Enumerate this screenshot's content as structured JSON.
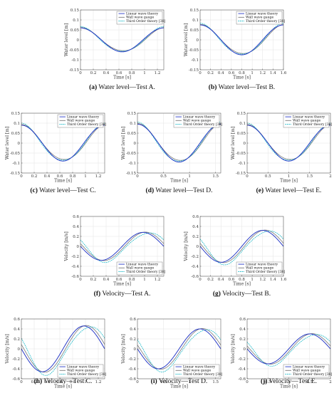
{
  "colors": {
    "linear": "#2a3cc8",
    "wall": "#7a7a7a",
    "third": "#19b9c8"
  },
  "legend_entries": [
    "Linear wave theory",
    "Wall wave gauge",
    "Third Order theory [38]"
  ],
  "chart_data": [
    {
      "type": "line",
      "tag": "(a)",
      "caption": "Water level—Test A.",
      "xlabel": "Time [s]",
      "ylabel": "Water level [m]",
      "xlim": [
        0,
        1.3
      ],
      "ylim": [
        -0.15,
        0.15
      ],
      "xticks": [
        0,
        0.2,
        0.4,
        0.6,
        0.8,
        1,
        1.2
      ],
      "yticks": [
        -0.15,
        -0.1,
        -0.05,
        0,
        0.05,
        0.1,
        0.15
      ],
      "period": 1.3,
      "amplitude": 0.06,
      "shape": "cos",
      "grid": true,
      "legend": "top-right"
    },
    {
      "type": "line",
      "tag": "(b)",
      "caption": "Water level—Test B.",
      "xlabel": "Time [s]",
      "ylabel": "Water level [m]",
      "xlim": [
        0,
        1.6
      ],
      "ylim": [
        -0.15,
        0.15
      ],
      "xticks": [
        0,
        0.2,
        0.4,
        0.6,
        0.8,
        1,
        1.2,
        1.4,
        1.6
      ],
      "yticks": [
        -0.15,
        -0.1,
        -0.05,
        0,
        0.05,
        0.1,
        0.15
      ],
      "period": 1.6,
      "amplitude": 0.075,
      "shape": "cos",
      "grid": true,
      "legend": "top-right"
    },
    {
      "type": "line",
      "tag": "(c)",
      "caption": "Water level—Test C.",
      "xlabel": "Time [s]",
      "ylabel": "Water level [m]",
      "xlim": [
        0,
        1.3
      ],
      "ylim": [
        -0.15,
        0.15
      ],
      "xticks": [
        0,
        0.2,
        0.4,
        0.6,
        0.8,
        1,
        1.2
      ],
      "yticks": [
        -0.15,
        -0.1,
        -0.05,
        0,
        0.05,
        0.1,
        0.15
      ],
      "period": 1.3,
      "amplitude": 0.09,
      "shape": "cos",
      "grid": true,
      "legend": "top-right"
    },
    {
      "type": "line",
      "tag": "(d)",
      "caption": "Water level—Test D.",
      "xlabel": "Time [s]",
      "ylabel": "Water level [m]",
      "xlim": [
        0,
        1.6
      ],
      "ylim": [
        -0.15,
        0.15
      ],
      "xticks": [
        0,
        0.5,
        1,
        1.5
      ],
      "yticks": [
        -0.15,
        -0.1,
        -0.05,
        0,
        0.05,
        0.1,
        0.15
      ],
      "period": 1.6,
      "amplitude": 0.095,
      "shape": "cos",
      "grid": true,
      "legend": "top-right"
    },
    {
      "type": "line",
      "tag": "(e)",
      "caption": "Water level—Test E.",
      "xlabel": "Time [s]",
      "ylabel": "Water level [m]",
      "xlim": [
        0,
        2
      ],
      "ylim": [
        -0.15,
        0.15
      ],
      "xticks": [
        0,
        0.5,
        1,
        1.5,
        2
      ],
      "yticks": [
        -0.15,
        -0.1,
        -0.05,
        0,
        0.05,
        0.1,
        0.15
      ],
      "period": 2,
      "amplitude": 0.09,
      "shape": "cos",
      "grid": true,
      "legend": "top-right"
    },
    {
      "type": "line",
      "tag": "(f)",
      "caption": "Velocity—Test A.",
      "xlabel": "Time [s]",
      "ylabel": "Velocity [m/s]",
      "xlim": [
        0,
        1.3
      ],
      "ylim": [
        -0.6,
        0.6
      ],
      "xticks": [
        0,
        0.2,
        0.4,
        0.6,
        0.8,
        1,
        1.2
      ],
      "yticks": [
        -0.6,
        -0.4,
        -0.2,
        0,
        0.2,
        0.4,
        0.6
      ],
      "period": 1.3,
      "amplitude": 0.28,
      "shape": "negsin",
      "grid": true,
      "legend": "bottom-right"
    },
    {
      "type": "line",
      "tag": "(g)",
      "caption": "Velocity—Test B.",
      "xlabel": "Time [s]",
      "ylabel": "Velocity [m/s]",
      "xlim": [
        0,
        1.6
      ],
      "ylim": [
        -0.6,
        0.6
      ],
      "xticks": [
        0,
        0.2,
        0.4,
        0.6,
        0.8,
        1,
        1.2,
        1.4,
        1.6
      ],
      "yticks": [
        -0.6,
        -0.4,
        -0.2,
        0,
        0.2,
        0.4,
        0.6
      ],
      "period": 1.6,
      "amplitude": 0.32,
      "shape": "negsin",
      "grid": true,
      "legend": "bottom-right"
    },
    {
      "type": "line",
      "tag": "(h)",
      "caption": "Velocity—Test C.",
      "xlabel": "Time [s]",
      "ylabel": "Velocity [m/s]",
      "xlim": [
        0,
        1.3
      ],
      "ylim": [
        -0.6,
        0.6
      ],
      "xticks": [
        0,
        0.2,
        0.4,
        0.6,
        0.8,
        1,
        1.2
      ],
      "yticks": [
        -0.6,
        -0.4,
        -0.2,
        0,
        0.2,
        0.4,
        0.6
      ],
      "period": 1.3,
      "amplitude": 0.46,
      "shape": "negsin",
      "grid": true,
      "legend": "bottom-right"
    },
    {
      "type": "line",
      "tag": "(i)",
      "caption": "Velocity—Test D.",
      "xlabel": "Time [s]",
      "ylabel": "Velocity [m/s]",
      "xlim": [
        0,
        1.6
      ],
      "ylim": [
        -0.6,
        0.6
      ],
      "xticks": [
        0,
        0.5,
        1,
        1.5
      ],
      "yticks": [
        -0.6,
        -0.4,
        -0.2,
        0,
        0.2,
        0.4,
        0.6
      ],
      "period": 1.6,
      "amplitude": 0.4,
      "shape": "negsin",
      "grid": true,
      "legend": "bottom-right"
    },
    {
      "type": "line",
      "tag": "(j)",
      "caption": "Velocity—Test E.",
      "xlabel": "Time [s]",
      "ylabel": "Velocity [m/s]",
      "xlim": [
        0,
        2
      ],
      "ylim": [
        -0.6,
        0.6
      ],
      "xticks": [
        0,
        0.5,
        1,
        1.5,
        2
      ],
      "yticks": [
        -0.6,
        -0.4,
        -0.2,
        0,
        0.2,
        0.4,
        0.6
      ],
      "period": 2,
      "amplitude": 0.3,
      "shape": "negsin",
      "grid": true,
      "legend": "bottom-right"
    }
  ]
}
